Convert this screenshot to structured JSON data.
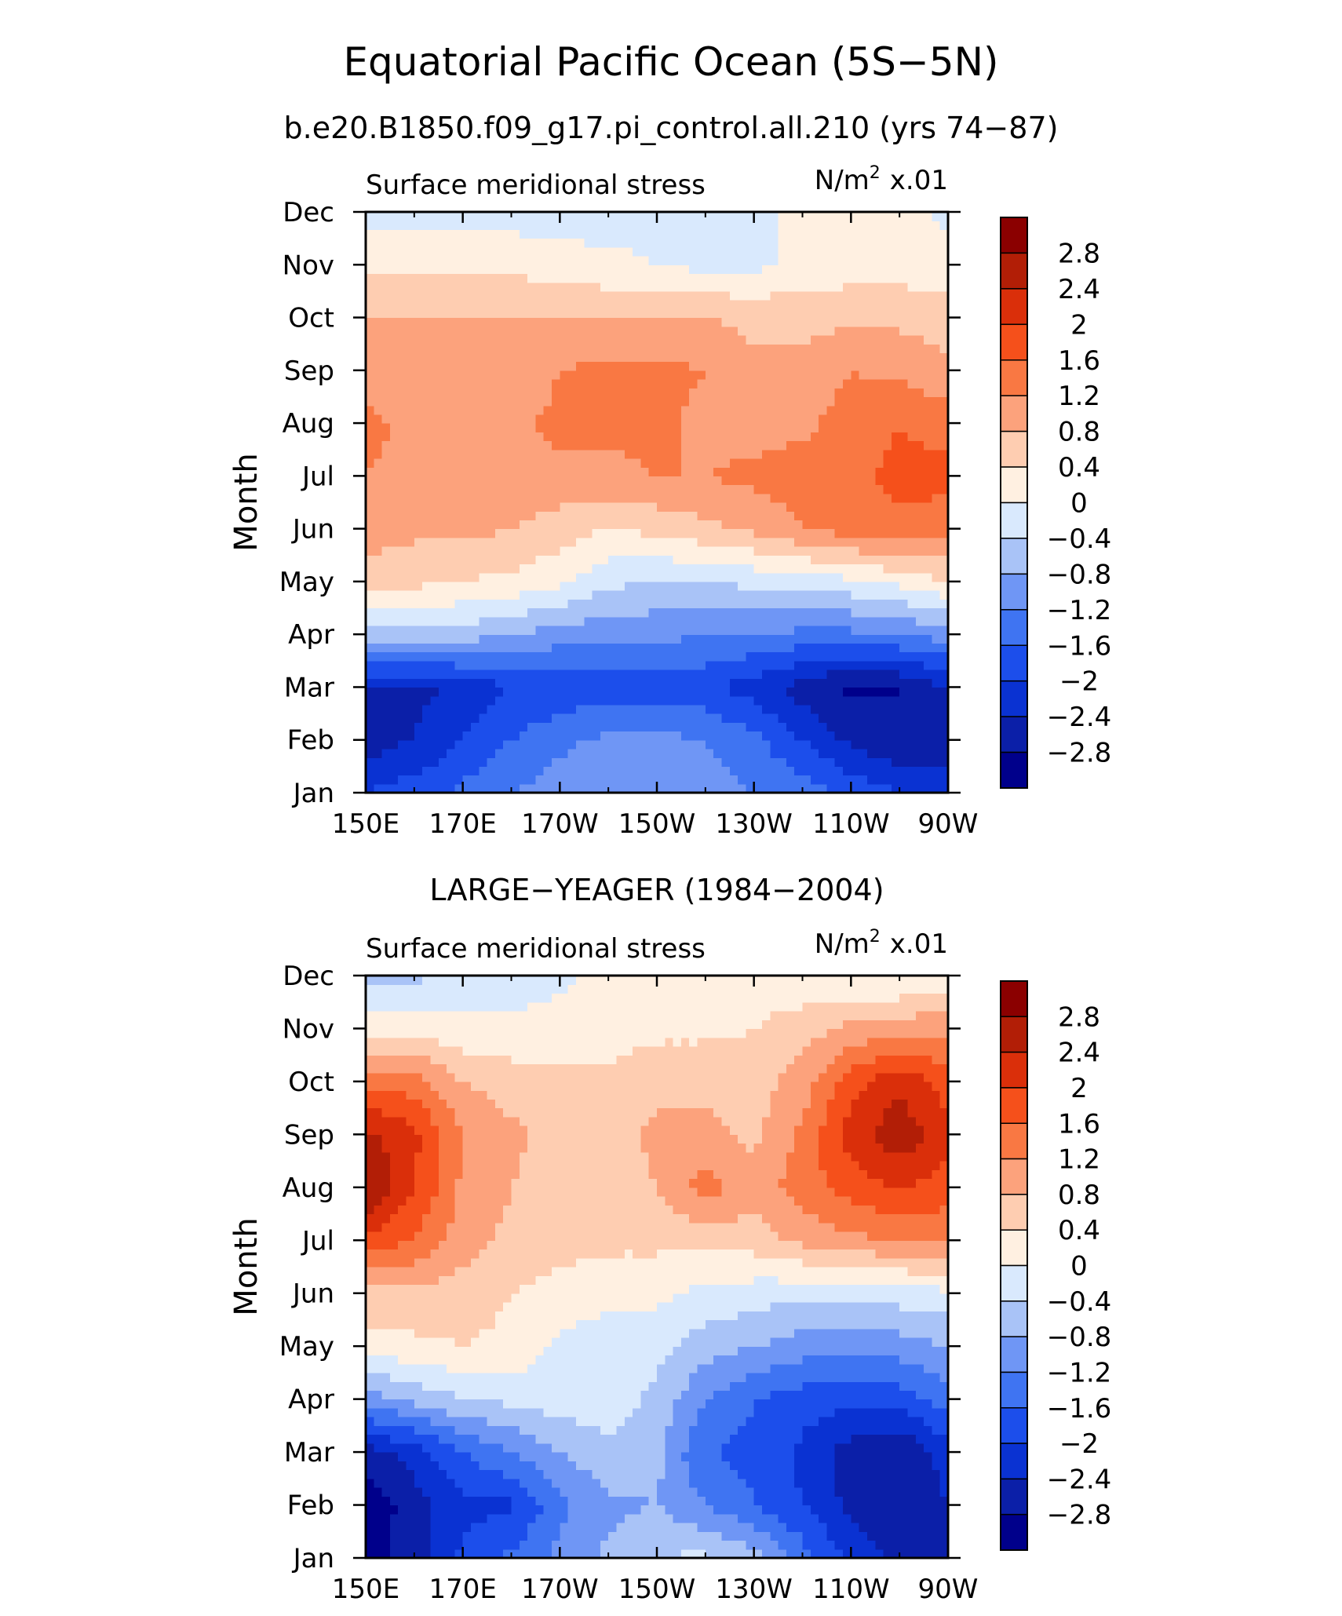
{
  "title": "Equatorial Pacific Ocean (5S−5N)",
  "subtitle": "b.e20.B1850.f09_g17.pi_control.all.210 (yrs 74−87)",
  "chart_data": [
    {
      "type": "heatmap",
      "panel_title": "",
      "left_label": "Surface meridional stress",
      "units_main": "N/m",
      "units_sup": "2",
      "units_scale": "x.01",
      "ylabel": "Month",
      "x_ticks": [
        "150E",
        "170E",
        "170W",
        "150W",
        "130W",
        "110W",
        "90W"
      ],
      "y_ticks": [
        "Jan",
        "Feb",
        "Mar",
        "Apr",
        "May",
        "Jun",
        "Jul",
        "Aug",
        "Sep",
        "Oct",
        "Nov",
        "Dec"
      ],
      "x": [
        150,
        160,
        170,
        180,
        190,
        200,
        210,
        220,
        230,
        240,
        250,
        260,
        270
      ],
      "z": [
        [
          -2.0,
          -1.8,
          -1.5,
          -1.2,
          -1.0,
          -0.9,
          -0.9,
          -1.0,
          -1.2,
          -1.4,
          -1.7,
          -2.0,
          -2.2
        ],
        [
          -2.6,
          -2.4,
          -2.0,
          -1.6,
          -1.3,
          -1.1,
          -1.1,
          -1.2,
          -1.5,
          -2.0,
          -2.5,
          -2.8,
          -2.6
        ],
        [
          -2.5,
          -2.5,
          -2.3,
          -2.0,
          -1.9,
          -1.8,
          -1.8,
          -1.9,
          -2.2,
          -2.6,
          -2.9,
          -2.8,
          -2.4
        ],
        [
          -0.5,
          -0.5,
          -0.6,
          -0.8,
          -1.0,
          -1.1,
          -1.1,
          -1.2,
          -1.2,
          -1.3,
          -1.3,
          -1.2,
          -1.0
        ],
        [
          0.6,
          0.5,
          0.4,
          0.3,
          0.1,
          -0.3,
          -0.4,
          -0.4,
          -0.3,
          -0.2,
          -0.1,
          0.1,
          0.4
        ],
        [
          1.0,
          0.9,
          0.9,
          0.8,
          0.6,
          0.4,
          0.5,
          0.7,
          0.9,
          1.2,
          1.4,
          1.5,
          1.3
        ],
        [
          1.2,
          1.1,
          1.1,
          1.1,
          1.1,
          1.1,
          1.2,
          1.2,
          1.3,
          1.4,
          1.5,
          1.7,
          1.8
        ],
        [
          1.3,
          1.1,
          1.1,
          1.1,
          1.3,
          1.3,
          1.3,
          1.1,
          1.0,
          1.1,
          1.4,
          1.6,
          1.4
        ],
        [
          1.0,
          0.9,
          0.9,
          0.9,
          1.2,
          1.3,
          1.3,
          1.2,
          0.9,
          0.9,
          1.2,
          1.1,
          0.9
        ],
        [
          0.8,
          0.8,
          0.8,
          0.8,
          0.8,
          0.8,
          0.8,
          0.8,
          0.7,
          0.7,
          0.7,
          0.7,
          0.6
        ],
        [
          0.3,
          0.3,
          0.3,
          0.3,
          0.2,
          0.1,
          0.0,
          -0.1,
          -0.1,
          0.1,
          0.2,
          0.2,
          0.2
        ],
        [
          -0.1,
          -0.1,
          -0.2,
          -0.2,
          -0.2,
          -0.2,
          -0.1,
          -0.1,
          -0.1,
          0.1,
          0.1,
          0.1,
          -0.1
        ]
      ]
    },
    {
      "type": "heatmap",
      "panel_title": "LARGE−YEAGER (1984−2004)",
      "left_label": "Surface meridional stress",
      "units_main": "N/m",
      "units_sup": "2",
      "units_scale": "x.01",
      "ylabel": "Month",
      "x_ticks": [
        "150E",
        "170E",
        "170W",
        "150W",
        "130W",
        "110W",
        "90W"
      ],
      "y_ticks": [
        "Jan",
        "Feb",
        "Mar",
        "Apr",
        "May",
        "Jun",
        "Jul",
        "Aug",
        "Sep",
        "Oct",
        "Nov",
        "Dec"
      ],
      "x": [
        150,
        160,
        170,
        180,
        190,
        200,
        210,
        220,
        230,
        240,
        250,
        260,
        270
      ],
      "z": [
        [
          -3.0,
          -2.6,
          -1.9,
          -1.5,
          -1.1,
          -0.7,
          -0.4,
          -0.3,
          -0.6,
          -1.4,
          -2.1,
          -2.5,
          -2.6
        ],
        [
          -3.1,
          -2.6,
          -2.1,
          -2.1,
          -1.3,
          -0.9,
          -0.8,
          -1.2,
          -1.6,
          -2.0,
          -2.5,
          -2.8,
          -2.4
        ],
        [
          -2.6,
          -2.2,
          -1.6,
          -1.2,
          -0.8,
          -0.5,
          -0.7,
          -1.6,
          -1.7,
          -2.1,
          -2.6,
          -2.8,
          -2.2
        ],
        [
          -1.0,
          -0.7,
          -0.4,
          -0.3,
          -0.2,
          -0.2,
          -0.5,
          -1.2,
          -1.6,
          -1.8,
          -1.9,
          -1.8,
          -1.4
        ],
        [
          0.2,
          0.3,
          0.4,
          0.3,
          -0.1,
          -0.2,
          -0.3,
          -0.6,
          -0.8,
          -1.0,
          -1.1,
          -1.0,
          -0.8
        ],
        [
          0.7,
          0.7,
          0.6,
          0.4,
          0.2,
          0.1,
          0.1,
          -0.1,
          -0.2,
          -0.3,
          -0.3,
          -0.2,
          -0.1
        ],
        [
          1.9,
          1.6,
          1.0,
          0.7,
          0.6,
          0.5,
          0.5,
          0.5,
          0.6,
          0.9,
          1.1,
          1.2,
          1.3
        ],
        [
          2.9,
          2.0,
          1.1,
          0.8,
          0.6,
          0.6,
          0.8,
          1.4,
          1.0,
          1.4,
          1.8,
          2.0,
          1.8
        ],
        [
          2.5,
          2.1,
          1.2,
          0.9,
          0.6,
          0.6,
          0.9,
          0.9,
          0.7,
          1.3,
          2.2,
          2.7,
          2.1
        ],
        [
          1.5,
          1.4,
          0.8,
          0.6,
          0.5,
          0.5,
          0.7,
          0.7,
          0.6,
          1.0,
          1.8,
          2.3,
          1.8
        ],
        [
          0.3,
          0.2,
          0.1,
          0.1,
          0.2,
          0.2,
          0.3,
          0.3,
          0.4,
          0.6,
          0.9,
          1.1,
          1.0
        ],
        [
          -0.6,
          -0.5,
          -0.3,
          -0.2,
          -0.1,
          0.1,
          0.2,
          0.3,
          0.2,
          0.1,
          0.0,
          -0.1,
          0.2
        ]
      ]
    }
  ],
  "colorbar": {
    "levels": [
      -2.8,
      -2.4,
      -2.0,
      -1.6,
      -1.2,
      -0.8,
      -0.4,
      0,
      0.4,
      0.8,
      1.2,
      1.6,
      2.0,
      2.4,
      2.8
    ],
    "labels_top_to_bottom": [
      "2.8",
      "2.4",
      "2",
      "1.6",
      "1.2",
      "0.8",
      "0.4",
      "0",
      "−0.4",
      "−0.8",
      "−1.2",
      "−1.6",
      "−2",
      "−2.4",
      "−2.8"
    ],
    "colors_low_to_high": [
      "#00008b",
      "#0b1fa8",
      "#0a32d2",
      "#1c4eeb",
      "#3f74f2",
      "#6f96f5",
      "#a9c3f7",
      "#d9e9fd",
      "#fff0e1",
      "#fecdb1",
      "#fca27c",
      "#f97843",
      "#f5501b",
      "#da2f0a",
      "#b21e06",
      "#8b0000"
    ]
  }
}
